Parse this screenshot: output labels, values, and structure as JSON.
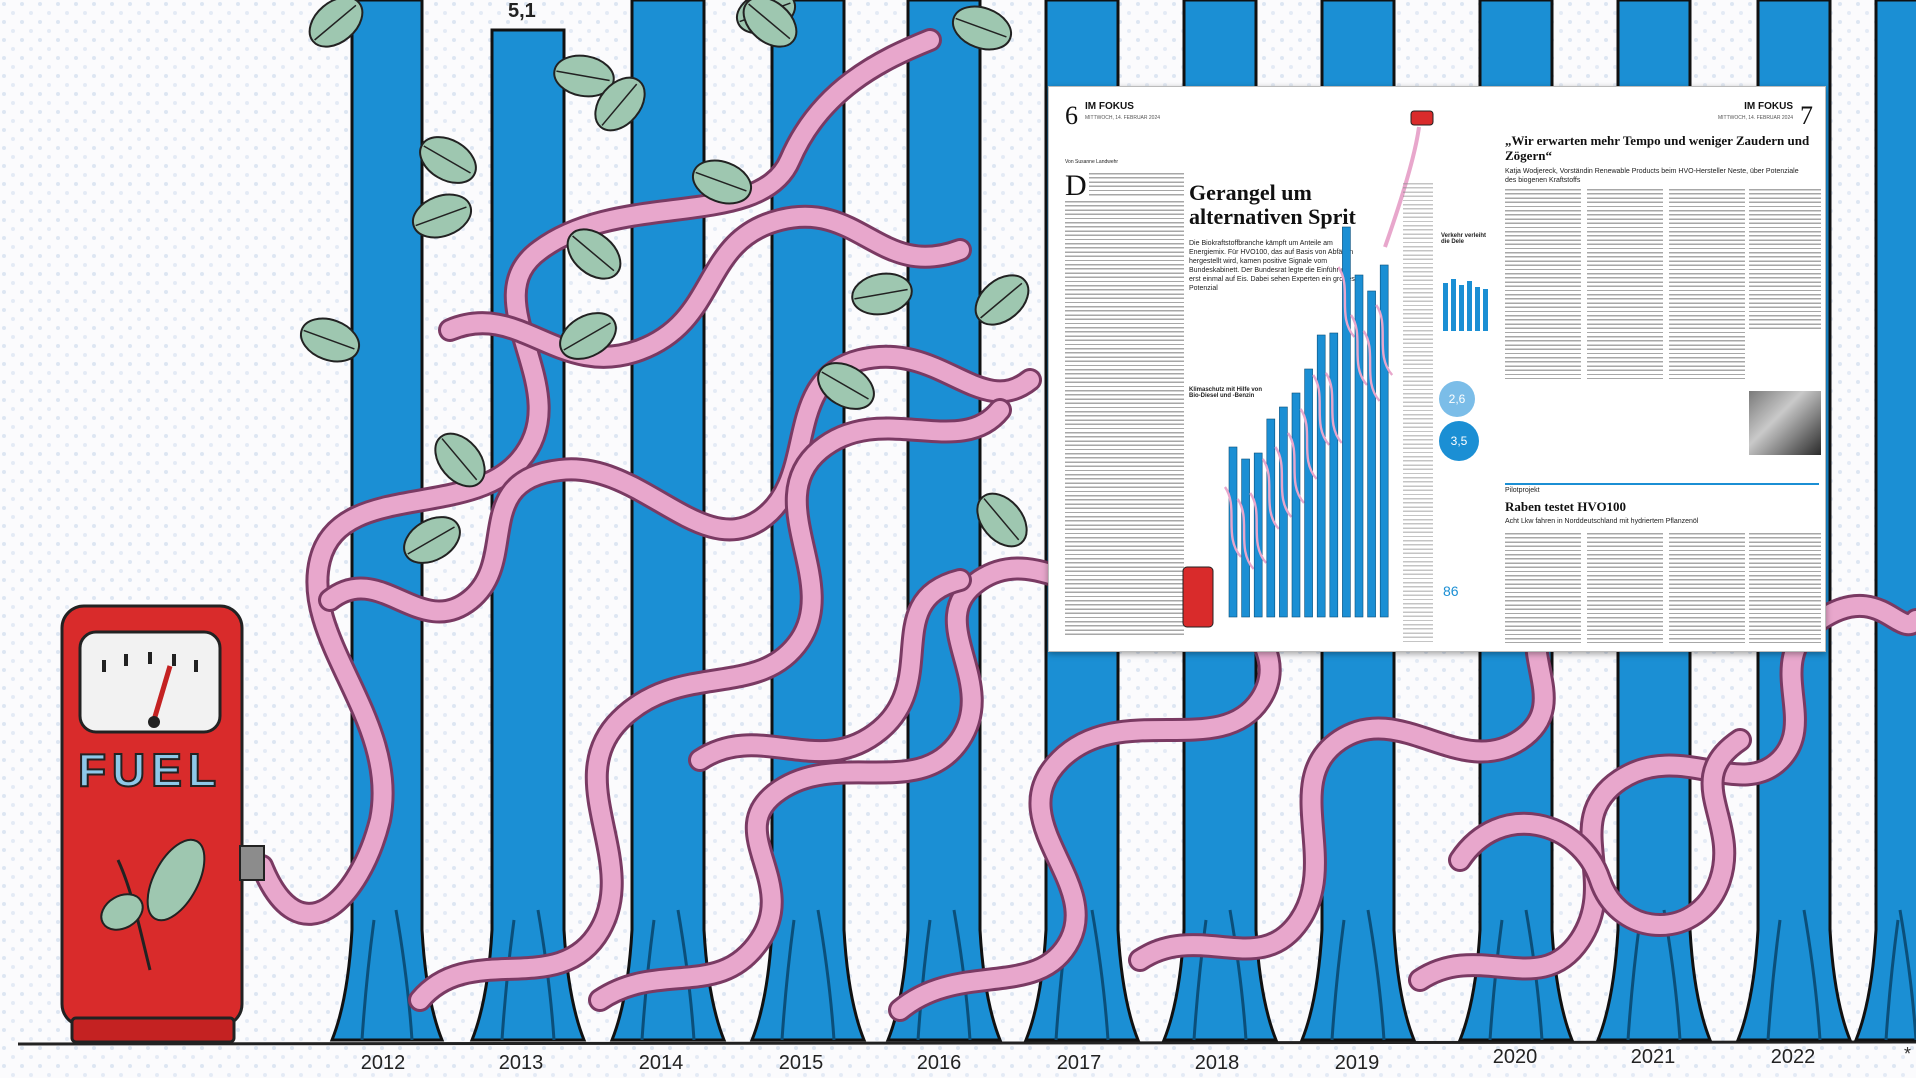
{
  "chart": {
    "years": [
      "2012",
      "2013",
      "2014",
      "2015",
      "2016",
      "2017",
      "2018",
      "2019",
      "2020",
      "2021",
      "2022"
    ],
    "top_value_label": "5,1",
    "footnote_mark": "*"
  },
  "pump": {
    "label": "FUEL"
  },
  "colors": {
    "bar": "#1b8fd4",
    "bar_dark": "#0b4f7a",
    "hose": "#e8a7cc",
    "hose_outline": "#7a3a63",
    "pump": "#d92b2b",
    "leaf": "#9ec7b0",
    "background": "#fbfbfd"
  },
  "newspaper": {
    "left_page": {
      "page_number": "6",
      "rubric": "IM FOKUS",
      "meta": "MITTWOCH, 14. FEBRUAR 2024",
      "byline": "Von Susanne Landwehr",
      "drop_cap": "D",
      "headline": "Gerangel um alternativen Sprit",
      "deck": "Die Biokraftstoffbranche kämpft um Anteile am Energiemix. Für HVO100, das auf Basis von Abfällen hergestellt wird, kamen positive Signale vom Bundeskabinett. Der Bundesrat legte die Einführung erst einmal auf Eis. Dabei sehen Experten ein großes Potenzial",
      "chart_caption": "Klimaschutz mit Hilfe von Bio-Diesel und -Benzin",
      "inset_title": "Verkehr verleiht die Dele",
      "bubble_1": "2,6",
      "bubble_2": "3,5",
      "big_number": "86"
    },
    "right_page": {
      "page_number": "7",
      "rubric": "IM FOKUS",
      "meta": "MITTWOCH, 14. FEBRUAR 2024",
      "headline": "„Wir erwarten mehr Tempo und weniger Zaudern und Zögern“",
      "subhead": "Katja Wodjereck, Vorständin Renewable Products beim HVO-Hersteller Neste, über Potenziale des biogenen Kraftstoffs",
      "kicker": "Pilotprojekt",
      "headline_2": "Raben testet HVO100",
      "subhead_2": "Acht Lkw fahren in Norddeutschland mit hydriertem Pflanzenöl"
    }
  }
}
